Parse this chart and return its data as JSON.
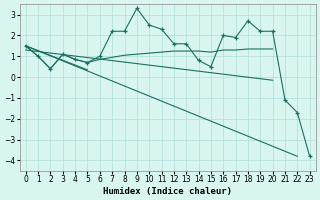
{
  "xlabel": "Humidex (Indice chaleur)",
  "bg_color": "#d8f5f0",
  "grid_color": "#b0ddd8",
  "line_color": "#1a7060",
  "xlim": [
    -0.5,
    23.5
  ],
  "ylim": [
    -4.5,
    3.5
  ],
  "yticks": [
    -4,
    -3,
    -2,
    -1,
    0,
    1,
    2,
    3
  ],
  "xticks": [
    0,
    1,
    2,
    3,
    4,
    5,
    6,
    7,
    8,
    9,
    10,
    11,
    12,
    13,
    14,
    15,
    16,
    17,
    18,
    19,
    20,
    21,
    22,
    23
  ],
  "curve1_x": [
    0,
    1,
    2,
    3,
    4,
    5,
    6,
    7,
    8,
    9,
    10,
    11,
    12,
    13,
    14,
    15,
    16,
    17,
    18,
    19,
    20,
    21,
    22,
    23
  ],
  "curve1_y": [
    1.5,
    1.0,
    0.4,
    1.1,
    0.85,
    0.7,
    1.0,
    2.2,
    2.2,
    3.3,
    2.5,
    2.3,
    1.6,
    1.6,
    0.8,
    0.5,
    2.0,
    1.9,
    2.7,
    2.2,
    2.2,
    -1.1,
    -1.7,
    -3.8
  ],
  "curve2_x": [
    0,
    1,
    2,
    3,
    4,
    5,
    6,
    7,
    8,
    9,
    10,
    11,
    12,
    13,
    14,
    15,
    16,
    17,
    18,
    19,
    20
  ],
  "curve2_y": [
    1.5,
    1.0,
    0.4,
    1.1,
    0.85,
    0.7,
    0.85,
    0.95,
    1.05,
    1.1,
    1.15,
    1.2,
    1.25,
    1.25,
    1.25,
    1.2,
    1.3,
    1.3,
    1.35,
    1.35,
    1.35
  ],
  "line1_x": [
    0,
    20
  ],
  "line1_y": [
    1.3,
    -0.15
  ],
  "line2_x": [
    0,
    22
  ],
  "line2_y": [
    1.5,
    -3.8
  ],
  "line3_x": [
    0,
    5
  ],
  "line3_y": [
    1.5,
    0.35
  ]
}
